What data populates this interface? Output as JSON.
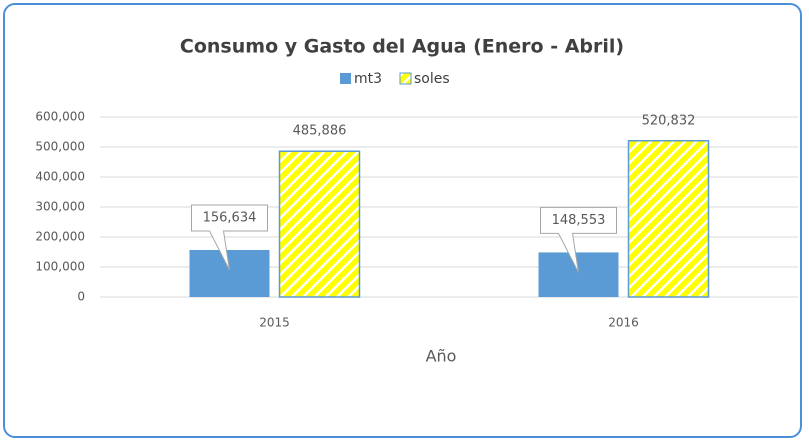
{
  "chart_data": {
    "type": "bar",
    "title": "Consumo y Gasto del Agua (Enero - Abril)",
    "x_label": "Año",
    "categories": [
      "2015",
      "2016"
    ],
    "series": [
      {
        "name": "mt3",
        "color": "#5b9bd5",
        "values": [
          156634,
          148553
        ],
        "value_labels": [
          "156,634",
          "148,553"
        ]
      },
      {
        "name": "soles",
        "color": "#ffff00",
        "values": [
          485886,
          520832
        ],
        "value_labels": [
          "485,886",
          "520,832"
        ]
      }
    ],
    "ylim": [
      0,
      600000
    ],
    "yticks": [
      {
        "value": 0,
        "label": "0"
      },
      {
        "value": 100000,
        "label": "100,000"
      },
      {
        "value": 200000,
        "label": "200,000"
      },
      {
        "value": 300000,
        "label": "300,000"
      },
      {
        "value": 400000,
        "label": "400,000"
      },
      {
        "value": 500000,
        "label": "500,000"
      },
      {
        "value": 600000,
        "label": "600,000"
      }
    ],
    "grid": true,
    "legend": "top"
  }
}
